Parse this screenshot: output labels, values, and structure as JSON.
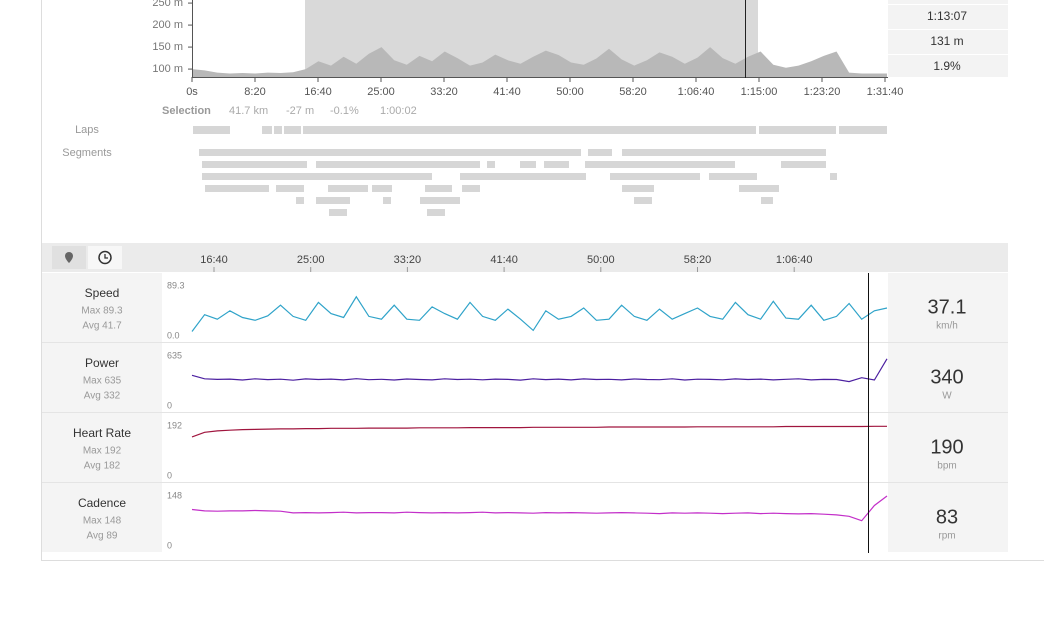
{
  "elevation": {
    "type": "area",
    "ylim": [
      82,
      257
    ],
    "yticks": [
      {
        "value": 100,
        "label": "100 m"
      },
      {
        "value": 150,
        "label": "150 m"
      },
      {
        "value": 200,
        "label": "200 m"
      },
      {
        "value": 250,
        "label": "250 m"
      }
    ],
    "xticks": [
      "0s",
      "8:20",
      "16:40",
      "25:00",
      "33:20",
      "41:40",
      "50:00",
      "58:20",
      "1:06:40",
      "1:15:00",
      "1:23:20",
      "1:31:40"
    ],
    "values": [
      100,
      97,
      92,
      90,
      91,
      90,
      92,
      91,
      93,
      100,
      118,
      108,
      128,
      112,
      135,
      150,
      120,
      110,
      130,
      118,
      140,
      125,
      108,
      115,
      133,
      120,
      112,
      128,
      142,
      132,
      115,
      110,
      124,
      146,
      122,
      108,
      120,
      138,
      128,
      112,
      126,
      150,
      125,
      112,
      128,
      140,
      110,
      103,
      108,
      118,
      130,
      140,
      92,
      90,
      90,
      90
    ]
  },
  "selection_stats": [
    "1:13:07",
    "131 m",
    "1.9%"
  ],
  "selection": {
    "label": "Selection",
    "distance": "41.7 km",
    "elevation": "-27 m",
    "grade": "-0.1%",
    "duration": "1:00:02"
  },
  "labels": {
    "laps": "Laps",
    "segments": "Segments"
  },
  "timeline_ticks": [
    "16:40",
    "25:00",
    "33:20",
    "41:40",
    "50:00",
    "58:20",
    "1:06:40"
  ],
  "streams": [
    {
      "type": "line",
      "name": "Speed",
      "max": "Max 89.3",
      "avg": "Avg 41.7",
      "ylim": [
        0,
        89.3
      ],
      "yticks": [
        {
          "value": 0,
          "label": "0.0"
        },
        89.3
      ],
      "color": "#2fa3c9",
      "current": "37.1",
      "unit": "km/h",
      "values": [
        8,
        38,
        30,
        45,
        33,
        28,
        36,
        55,
        35,
        28,
        60,
        40,
        33,
        70,
        35,
        30,
        55,
        30,
        28,
        52,
        40,
        30,
        60,
        35,
        28,
        48,
        30,
        10,
        45,
        30,
        35,
        50,
        28,
        30,
        55,
        35,
        28,
        48,
        30,
        40,
        50,
        35,
        30,
        60,
        38,
        30,
        62,
        32,
        30,
        55,
        28,
        35,
        58,
        30,
        45,
        50
      ]
    },
    {
      "type": "line",
      "name": "Power",
      "max": "Max 635",
      "avg": "Avg 332",
      "ylim": [
        0,
        635
      ],
      "yticks": [
        0,
        635
      ],
      "color": "#4b1fa0",
      "current": "340",
      "unit": "W",
      "values": [
        390,
        345,
        338,
        342,
        330,
        346,
        335,
        340,
        328,
        344,
        336,
        341,
        332,
        347,
        334,
        339,
        330,
        343,
        337,
        331,
        345,
        336,
        340,
        333,
        342,
        338,
        329,
        346,
        335,
        341,
        332,
        344,
        336,
        339,
        331,
        343,
        337,
        334,
        345,
        330,
        340,
        338,
        333,
        344,
        336,
        341,
        332,
        339,
        345,
        331,
        338,
        336,
        310,
        360,
        330,
        600
      ]
    },
    {
      "type": "line",
      "name": "Heart Rate",
      "max": "Max 192",
      "avg": "Avg 182",
      "ylim": [
        0,
        192
      ],
      "yticks": [
        0,
        192
      ],
      "color": "#a0153e",
      "current": "190",
      "unit": "bpm",
      "values": [
        150,
        168,
        173,
        176,
        178,
        179,
        180,
        181,
        181,
        182,
        182,
        183,
        183,
        183,
        184,
        184,
        184,
        184,
        185,
        185,
        185,
        185,
        186,
        186,
        186,
        186,
        186,
        187,
        187,
        187,
        187,
        187,
        187,
        188,
        188,
        188,
        188,
        188,
        188,
        188,
        189,
        189,
        189,
        189,
        189,
        189,
        189,
        190,
        190,
        190,
        190,
        190,
        190,
        190,
        191,
        191
      ]
    },
    {
      "type": "line",
      "name": "Cadence",
      "max": "Max 148",
      "avg": "Avg 89",
      "ylim": [
        0,
        148
      ],
      "yticks": [
        0,
        148
      ],
      "color": "#c32fc9",
      "current": "83",
      "unit": "rpm",
      "values": [
        108,
        104,
        103,
        104,
        104,
        105,
        104,
        103,
        98,
        99,
        98,
        99,
        100,
        98,
        99,
        99,
        98,
        100,
        99,
        98,
        99,
        98,
        99,
        100,
        98,
        99,
        98,
        97,
        99,
        98,
        99,
        98,
        97,
        98,
        99,
        98,
        97,
        96,
        98,
        97,
        98,
        97,
        96,
        97,
        98,
        96,
        97,
        96,
        95,
        96,
        94,
        92,
        88,
        75,
        120,
        148
      ]
    }
  ]
}
